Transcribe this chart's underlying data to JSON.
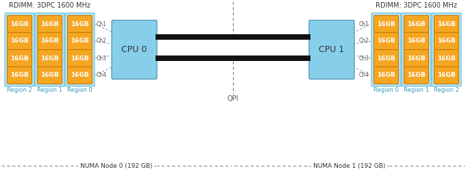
{
  "fig_width": 6.8,
  "fig_height": 2.54,
  "dpi": 100,
  "bg_color": "#ffffff",
  "dimm_color": "#f5a623",
  "dimm_border_color": "#cc7a00",
  "dimm_text_color": "#ffffff",
  "dimm_text": "16GB",
  "cpu_color": "#87ceeb",
  "cpu_border_color": "#5599bb",
  "region_bg_color": "#b3e4f5",
  "region_border_color": "#6bbdd9",
  "region_label_color": "#3a9bbf",
  "header_color": "#333333",
  "channel_color": "#555555",
  "numa_color": "#333333",
  "qpi_color": "#555555",
  "left_header": "RDIMM: 3DPC 1600 MHz",
  "right_header": "RDIMM: 3DPC 1600 MHz",
  "cpu0_label": "CPU 0",
  "cpu1_label": "CPU 1",
  "qpi_label": "QPI",
  "channels": [
    "Ch1",
    "Ch2",
    "Ch3",
    "Ch4"
  ],
  "left_regions": [
    "Region 2",
    "Region 1",
    "Region 0"
  ],
  "right_regions": [
    "Region 0",
    "Region 1",
    "Region 2"
  ],
  "numa0_label": "NUMA Node 0 (192 GB)",
  "numa1_label": "NUMA Node 1 (192 GB)"
}
